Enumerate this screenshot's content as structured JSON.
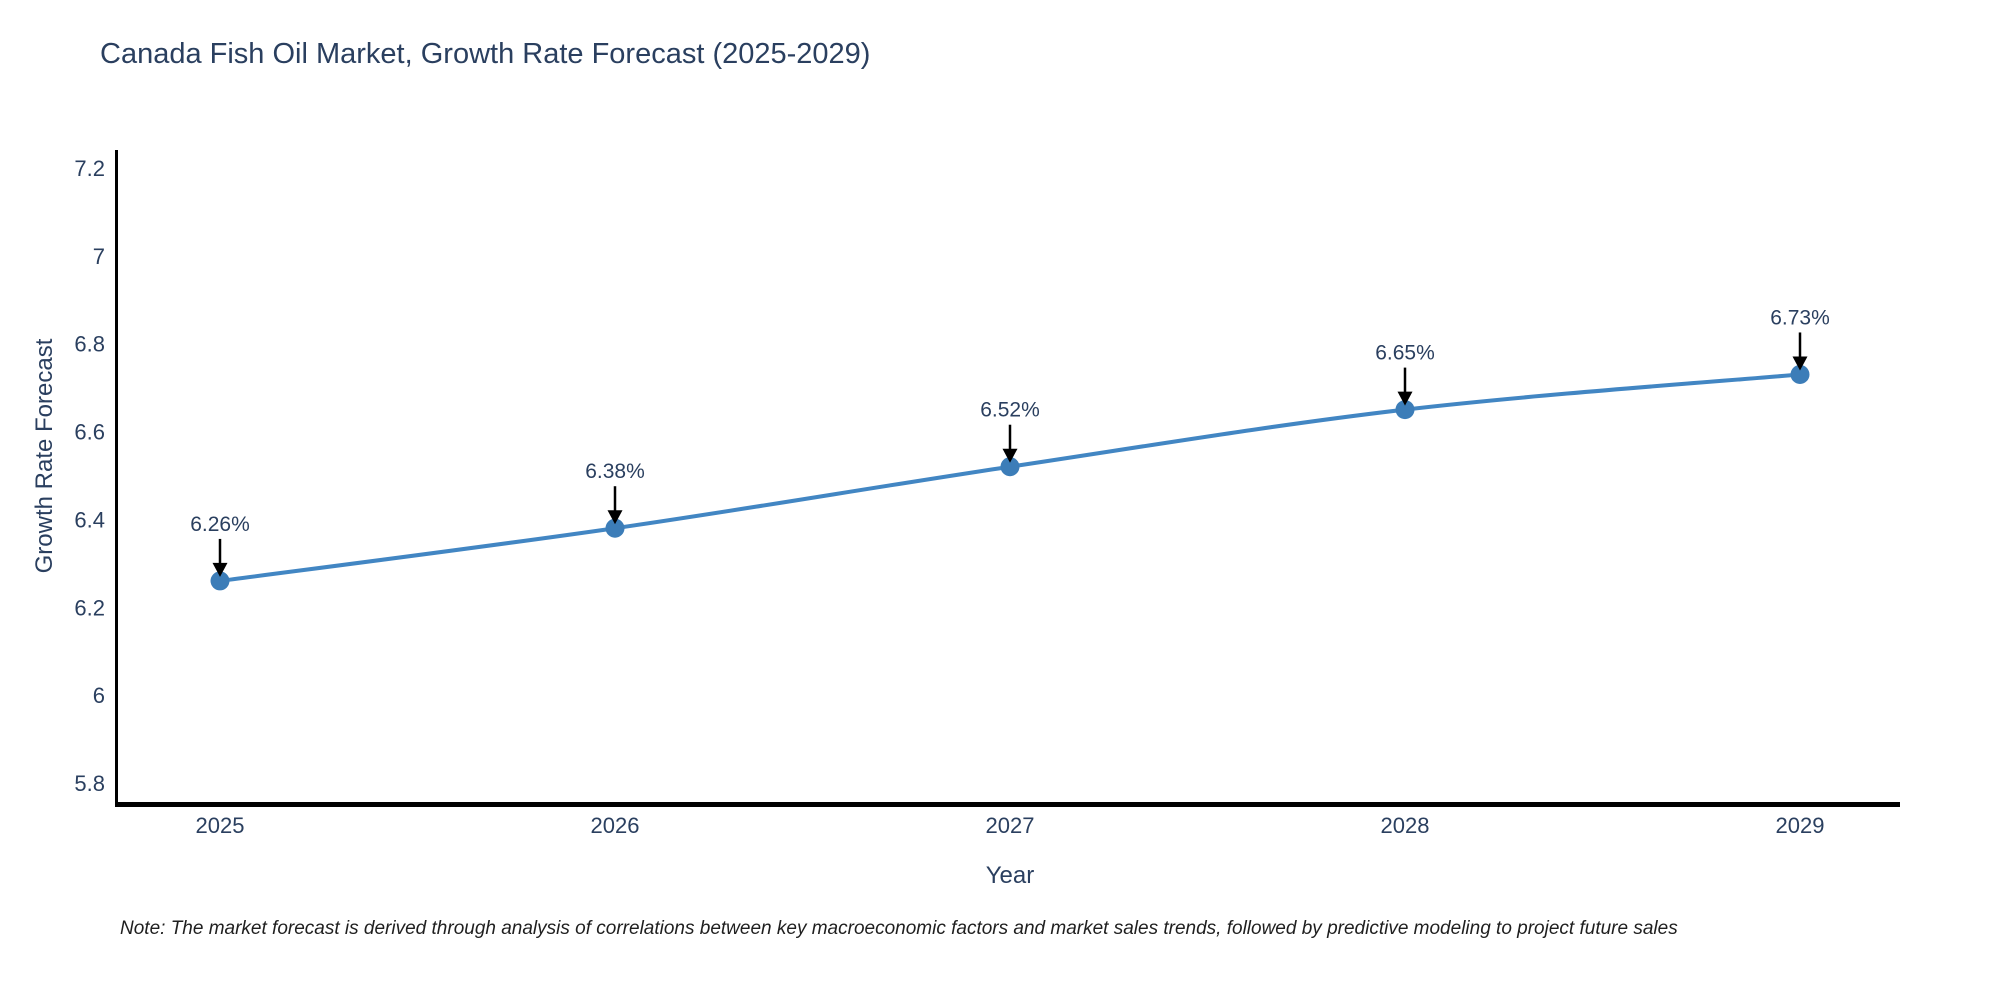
{
  "page": {
    "note": "Note: The market forecast is derived through analysis of correlations between key macroeconomic factors and market sales trends, followed by predictive modeling to project future sales"
  },
  "chart_data": {
    "type": "line",
    "title": "Canada Fish Oil Market, Growth Rate Forecast (2025-2029)",
    "xlabel": "Year",
    "ylabel": "Growth Rate Forecast",
    "x": [
      2025,
      2026,
      2027,
      2028,
      2029
    ],
    "categories": [
      "2025",
      "2026",
      "2027",
      "2028",
      "2029"
    ],
    "series": [
      {
        "name": "Growth Rate Forecast",
        "values": [
          6.26,
          6.38,
          6.52,
          6.65,
          6.73
        ]
      }
    ],
    "point_labels": [
      "6.26%",
      "6.38%",
      "6.52%",
      "6.65%",
      "6.73%"
    ],
    "yticks": [
      "5.8",
      "6",
      "6.2",
      "6.4",
      "6.6",
      "6.8",
      "7",
      "7.2"
    ],
    "ytick_values": [
      5.8,
      6.0,
      6.2,
      6.4,
      6.6,
      6.8,
      7.0,
      7.2
    ],
    "ylim": [
      5.75,
      7.25
    ],
    "grid": false,
    "legend": "none",
    "line_color": "#4286c3",
    "marker_color": "#3c7db8",
    "arrow_color": "#000000",
    "spine_color": "#000000",
    "text_color": "#2a3f5f"
  }
}
